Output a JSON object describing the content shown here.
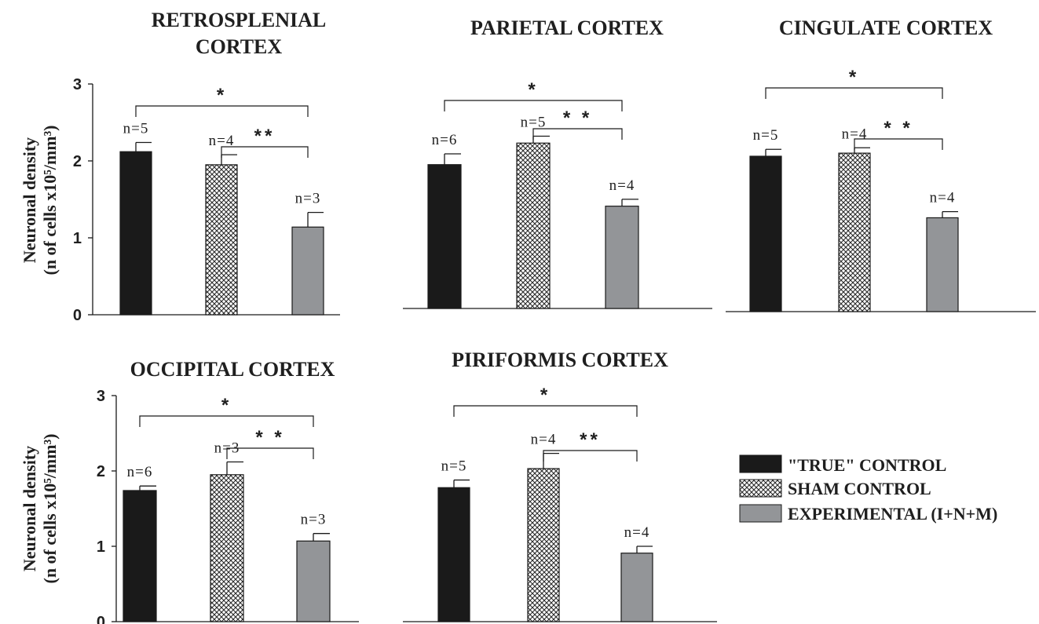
{
  "chart_data": [
    {
      "type": "bar",
      "title": "RETROSPLENIAL CORTEX",
      "ylabel_line1": "Neuronal density",
      "ylabel_line2": "(n of cells x10⁵/mm³)",
      "yticks": [
        "0",
        "1",
        "2",
        "3"
      ],
      "ylim": [
        0,
        3
      ],
      "series": [
        {
          "name": "\"TRUE\" CONTROL",
          "value": 2.12,
          "error": 0.12,
          "n_label": "n=5"
        },
        {
          "name": "SHAM CONTROL",
          "value": 1.95,
          "error": 0.13,
          "n_label": "n=4"
        },
        {
          "name": "EXPERIMENTAL (I+N+M)",
          "value": 1.14,
          "error": 0.19,
          "n_label": "n=3"
        }
      ],
      "significance": [
        {
          "from": 0,
          "to": 2,
          "label": "*"
        },
        {
          "from": 1,
          "to": 2,
          "label": "**"
        }
      ]
    },
    {
      "type": "bar",
      "title": "PARIETAL CORTEX",
      "ylim": [
        0,
        3
      ],
      "series": [
        {
          "name": "\"TRUE\" CONTROL",
          "value": 1.87,
          "error": 0.14,
          "n_label": "n=6"
        },
        {
          "name": "SHAM CONTROL",
          "value": 2.15,
          "error": 0.09,
          "n_label": "n=5"
        },
        {
          "name": "EXPERIMENTAL (I+N+M)",
          "value": 1.33,
          "error": 0.09,
          "n_label": "n=4"
        }
      ],
      "significance": [
        {
          "from": 0,
          "to": 2,
          "label": "*"
        },
        {
          "from": 1,
          "to": 2,
          "label": "* *"
        }
      ]
    },
    {
      "type": "bar",
      "title": "CINGULATE CORTEX",
      "ylim": [
        0,
        3
      ],
      "series": [
        {
          "name": "\"TRUE\" CONTROL",
          "value": 2.02,
          "error": 0.09,
          "n_label": "n=5"
        },
        {
          "name": "SHAM CONTROL",
          "value": 2.06,
          "error": 0.07,
          "n_label": "n=4"
        },
        {
          "name": "EXPERIMENTAL (I+N+M)",
          "value": 1.22,
          "error": 0.08,
          "n_label": "n=4"
        }
      ],
      "significance": [
        {
          "from": 0,
          "to": 2,
          "label": "*"
        },
        {
          "from": 1,
          "to": 2,
          "label": "* *"
        }
      ]
    },
    {
      "type": "bar",
      "title": "OCCIPITAL CORTEX",
      "ylabel_line1": "Neuronal density",
      "ylabel_line2": "(n of cells x10⁵/mm³)",
      "yticks": [
        "0",
        "1",
        "2",
        "3"
      ],
      "ylim": [
        0,
        3
      ],
      "series": [
        {
          "name": "\"TRUE\" CONTROL",
          "value": 1.74,
          "error": 0.06,
          "n_label": "n=6"
        },
        {
          "name": "SHAM CONTROL",
          "value": 1.95,
          "error": 0.17,
          "n_label": "n=3"
        },
        {
          "name": "EXPERIMENTAL (I+N+M)",
          "value": 1.07,
          "error": 0.1,
          "n_label": "n=3"
        }
      ],
      "significance": [
        {
          "from": 0,
          "to": 2,
          "label": "*"
        },
        {
          "from": 1,
          "to": 2,
          "label": "* *"
        }
      ]
    },
    {
      "type": "bar",
      "title": "PIRIFORMIS CORTEX",
      "ylim": [
        0,
        3
      ],
      "series": [
        {
          "name": "\"TRUE\" CONTROL",
          "value": 1.76,
          "error": 0.1,
          "n_label": "n=5"
        },
        {
          "name": "SHAM CONTROL",
          "value": 2.01,
          "error": 0.2,
          "n_label": "n=4"
        },
        {
          "name": "EXPERIMENTAL (I+N+M)",
          "value": 0.9,
          "error": 0.09,
          "n_label": "n=4"
        }
      ],
      "significance": [
        {
          "from": 0,
          "to": 2,
          "label": "*"
        },
        {
          "from": 1,
          "to": 2,
          "label": "**"
        }
      ]
    }
  ],
  "legend": {
    "items": [
      {
        "label": "\"TRUE\" CONTROL",
        "fill": "solid",
        "color": "#1a1a1a"
      },
      {
        "label": "SHAM CONTROL",
        "fill": "crosshatch",
        "color": "#ffffff"
      },
      {
        "label": "EXPERIMENTAL (I+N+M)",
        "fill": "solid",
        "color": "#939598"
      }
    ]
  },
  "colors": {
    "true_control": "#1a1a1a",
    "sham_control_hatch": "#2a2a2a",
    "experimental": "#939598",
    "axis": "#1a1a1a"
  }
}
